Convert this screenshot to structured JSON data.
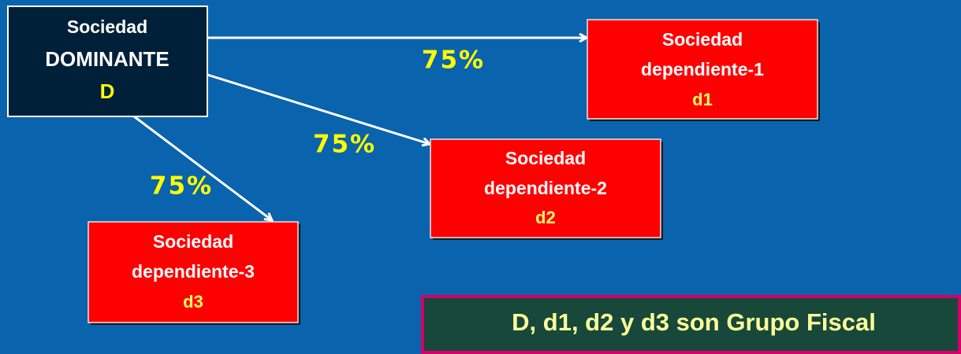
{
  "nodes": [
    {
      "lines": [
        "Sociedad",
        "DOMINANTE"
      ],
      "code": "D"
    },
    {
      "lines": [
        "Sociedad",
        "dependiente-1"
      ],
      "code": "d1"
    },
    {
      "lines": [
        "Sociedad",
        "dependiente-2"
      ],
      "code": "d2"
    },
    {
      "lines": [
        "Sociedad",
        "dependiente-3"
      ],
      "code": "d3"
    }
  ],
  "edges": [
    {
      "label": "75%"
    },
    {
      "label": "75%"
    },
    {
      "label": "75%"
    }
  ],
  "note": "D, d1, d2 y d3  son Grupo Fiscal"
}
